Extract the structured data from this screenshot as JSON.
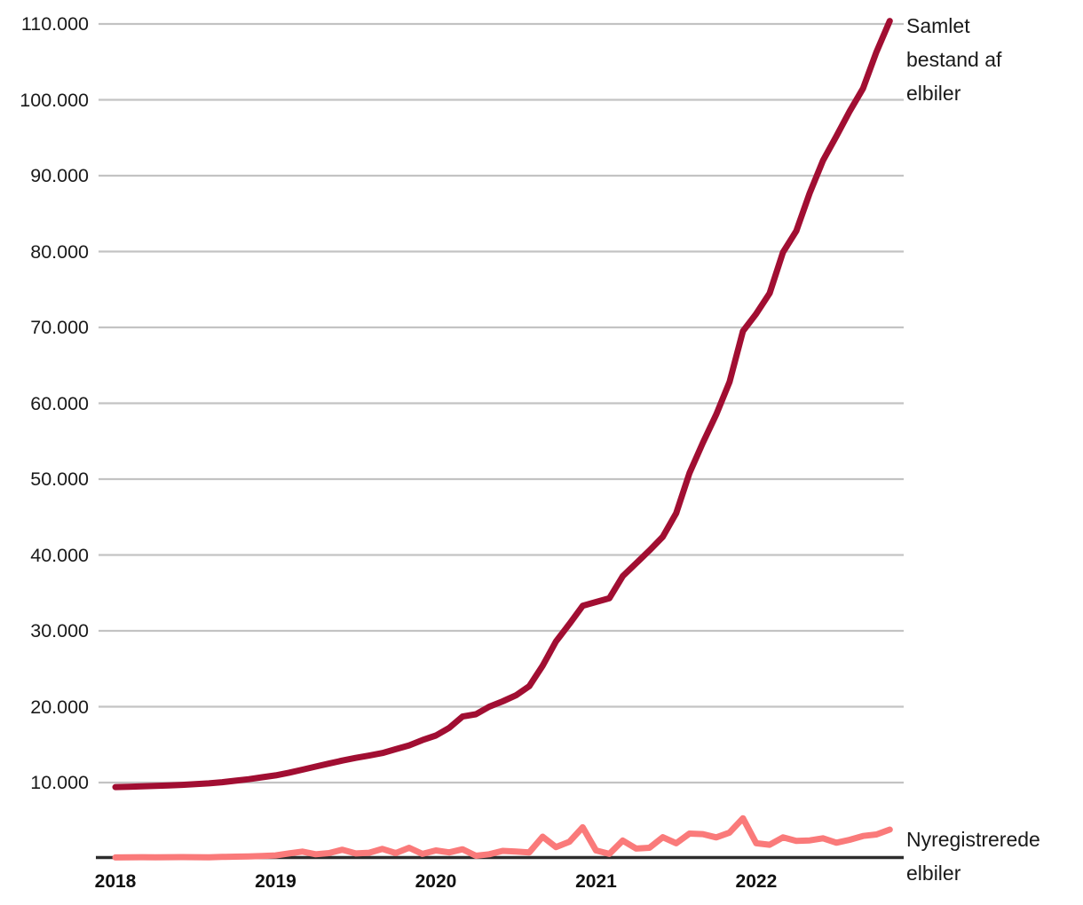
{
  "chart_data": {
    "type": "line",
    "title": "",
    "xlabel": "",
    "ylabel": "",
    "x_unit": "month",
    "x_start": "2018-01",
    "x_end": "2022-11",
    "grid": true,
    "legend_position": "right-annotations",
    "ylim": [
      0,
      113000
    ],
    "xticks": [
      "2018",
      "2019",
      "2020",
      "2021",
      "2022"
    ],
    "yticks": [
      {
        "value": 10000,
        "label": "10.000"
      },
      {
        "value": 20000,
        "label": "20.000"
      },
      {
        "value": 30000,
        "label": "30.000"
      },
      {
        "value": 40000,
        "label": "40.000"
      },
      {
        "value": 50000,
        "label": "50.000"
      },
      {
        "value": 60000,
        "label": "60.000"
      },
      {
        "value": 70000,
        "label": "70.000"
      },
      {
        "value": 80000,
        "label": "80.000"
      },
      {
        "value": 90000,
        "label": "90.000"
      },
      {
        "value": 100000,
        "label": "100.000"
      },
      {
        "value": 110000,
        "label": "110.000"
      }
    ],
    "series": [
      {
        "name": "Samlet bestand af elbiler",
        "label_lines": [
          "Samlet",
          "bestand af",
          "elbiler"
        ],
        "color": "#a10e32",
        "values": [
          9400,
          9450,
          9500,
          9550,
          9620,
          9700,
          9800,
          9900,
          10050,
          10250,
          10450,
          10700,
          10950,
          11300,
          11700,
          12100,
          12500,
          12900,
          13250,
          13550,
          13900,
          14400,
          14900,
          15600,
          16200,
          17200,
          18700,
          19000,
          20000,
          20700,
          21500,
          22700,
          25400,
          28600,
          30900,
          33300,
          33800,
          34300,
          37200,
          38900,
          40600,
          42400,
          45500,
          50800,
          54800,
          58500,
          62800,
          69500,
          71800,
          74500,
          79900,
          82700,
          87700,
          92000,
          95200,
          98500,
          101500,
          106300,
          110400
        ]
      },
      {
        "name": "Nyregistrerede elbiler",
        "label_lines": [
          "Nyregistrerede",
          "elbiler"
        ],
        "color": "#fa7a7a",
        "values": [
          130,
          150,
          160,
          140,
          160,
          180,
          160,
          150,
          200,
          230,
          260,
          320,
          400,
          650,
          900,
          550,
          700,
          1150,
          650,
          750,
          1250,
          700,
          1400,
          600,
          1050,
          800,
          1200,
          350,
          550,
          1000,
          900,
          800,
          2860,
          1500,
          2200,
          4100,
          1050,
          600,
          2350,
          1300,
          1400,
          2800,
          2000,
          3270,
          3200,
          2770,
          3400,
          5300,
          2000,
          1800,
          2770,
          2300,
          2370,
          2650,
          2070,
          2460,
          2960,
          3160,
          3800
        ]
      }
    ]
  },
  "colors": {
    "gridline": "#c3c3c3",
    "axis": "#2d2d2d",
    "text": "#1a1a1a",
    "background": "#ffffff"
  }
}
